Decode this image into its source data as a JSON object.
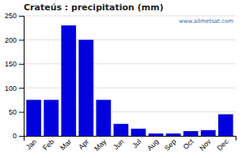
{
  "chart_data": {
    "type": "bar",
    "title": "Crateús : precipitation (mm)",
    "categories": [
      "Jan",
      "Feb",
      "Mar",
      "Apr",
      "May",
      "Jun",
      "Jul",
      "Aug",
      "Sep",
      "Oct",
      "Nov",
      "Dec"
    ],
    "values": [
      75,
      75,
      230,
      200,
      75,
      25,
      15,
      5,
      5,
      10,
      12,
      45
    ],
    "color": "#0000dd",
    "ylim": [
      0,
      250
    ],
    "yticks": [
      0,
      50,
      100,
      150,
      200,
      250
    ],
    "grid": true,
    "annotations": [
      "www.allmetsat.com"
    ]
  }
}
